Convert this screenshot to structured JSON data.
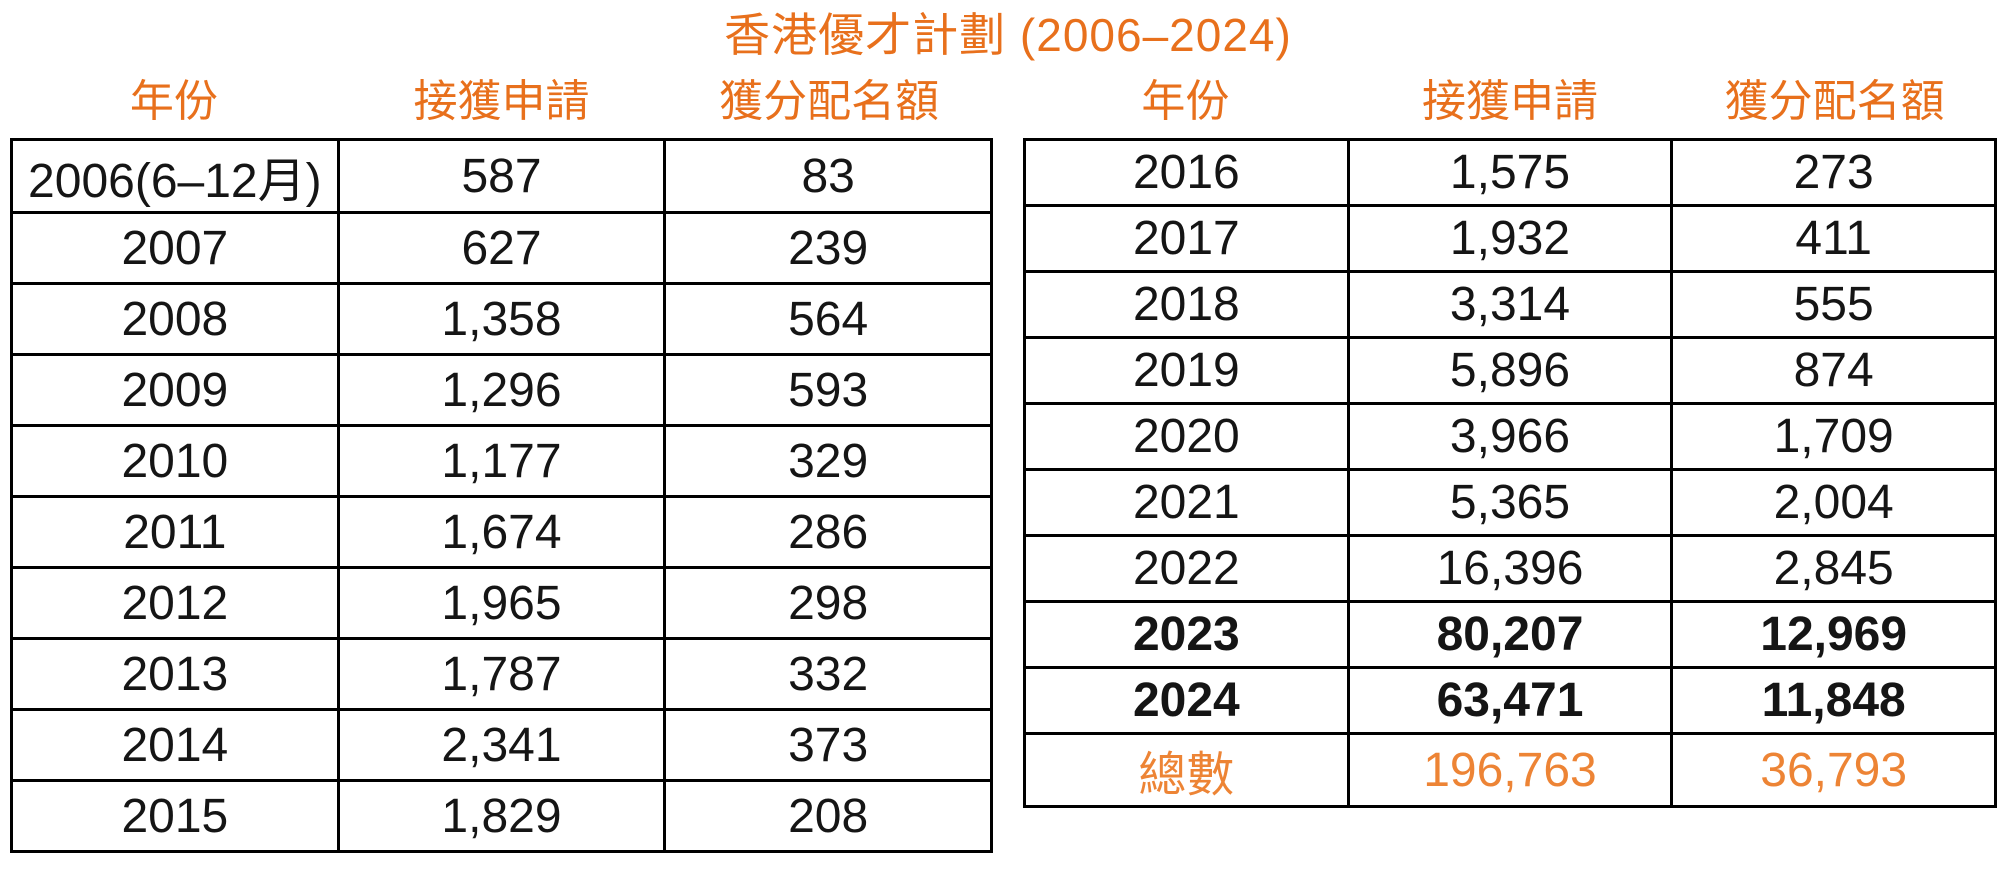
{
  "title": "香港優才計劃 (2006–2024)",
  "colors": {
    "accent": "#E8701C",
    "total_accent": "#ED8435",
    "text": "#151515",
    "border": "#000000",
    "background": "#FFFFFF"
  },
  "columns": {
    "year": "年份",
    "applications": "接獲申請",
    "quota": "獲分配名額"
  },
  "left_table": {
    "rows": [
      {
        "cells": [
          "2006(6–12月)",
          "587",
          "83"
        ]
      },
      {
        "cells": [
          "2007",
          "627",
          "239"
        ]
      },
      {
        "cells": [
          "2008",
          "1,358",
          "564"
        ]
      },
      {
        "cells": [
          "2009",
          "1,296",
          "593"
        ]
      },
      {
        "cells": [
          "2010",
          "1,177",
          "329"
        ]
      },
      {
        "cells": [
          "2011",
          "1,674",
          "286"
        ]
      },
      {
        "cells": [
          "2012",
          "1,965",
          "298"
        ]
      },
      {
        "cells": [
          "2013",
          "1,787",
          "332"
        ]
      },
      {
        "cells": [
          "2014",
          "2,341",
          "373"
        ]
      },
      {
        "cells": [
          "2015",
          "1,829",
          "208"
        ]
      }
    ]
  },
  "right_table": {
    "rows": [
      {
        "cells": [
          "2016",
          "1,575",
          "273"
        ]
      },
      {
        "cells": [
          "2017",
          "1,932",
          "411"
        ]
      },
      {
        "cells": [
          "2018",
          "3,314",
          "555"
        ]
      },
      {
        "cells": [
          "2019",
          "5,896",
          "874"
        ]
      },
      {
        "cells": [
          "2020",
          "3,966",
          "1,709"
        ]
      },
      {
        "cells": [
          "2021",
          "5,365",
          "2,004"
        ]
      },
      {
        "cells": [
          "2022",
          "16,396",
          "2,845"
        ]
      },
      {
        "cells": [
          "2023",
          "80,207",
          "12,969"
        ],
        "bold": true
      },
      {
        "cells": [
          "2024",
          "63,471",
          "11,848"
        ],
        "bold": true
      },
      {
        "cells": [
          "總數",
          "196,763",
          "36,793"
        ],
        "accent": true
      }
    ]
  },
  "chart_data": {
    "type": "table",
    "title": "香港優才計劃 (2006–2024)",
    "columns": [
      "年份",
      "接獲申請",
      "獲分配名額"
    ],
    "rows": [
      [
        "2006(6–12月)",
        587,
        83
      ],
      [
        "2007",
        627,
        239
      ],
      [
        "2008",
        1358,
        564
      ],
      [
        "2009",
        1296,
        593
      ],
      [
        "2010",
        1177,
        329
      ],
      [
        "2011",
        1674,
        286
      ],
      [
        "2012",
        1965,
        298
      ],
      [
        "2013",
        1787,
        332
      ],
      [
        "2014",
        2341,
        373
      ],
      [
        "2015",
        1829,
        208
      ],
      [
        "2016",
        1575,
        273
      ],
      [
        "2017",
        1932,
        411
      ],
      [
        "2018",
        3314,
        555
      ],
      [
        "2019",
        5896,
        874
      ],
      [
        "2020",
        3966,
        1709
      ],
      [
        "2021",
        5365,
        2004
      ],
      [
        "2022",
        16396,
        2845
      ],
      [
        "2023",
        80207,
        12969
      ],
      [
        "2024",
        63471,
        11848
      ]
    ],
    "total_row": [
      "總數",
      196763,
      36793
    ],
    "layout": "two side-by-side tables: 2006–2015 left, 2016–2024 plus total right",
    "emphasis": {
      "bold_rows": [
        "2023",
        "2024"
      ],
      "accent_row": "總數"
    }
  }
}
